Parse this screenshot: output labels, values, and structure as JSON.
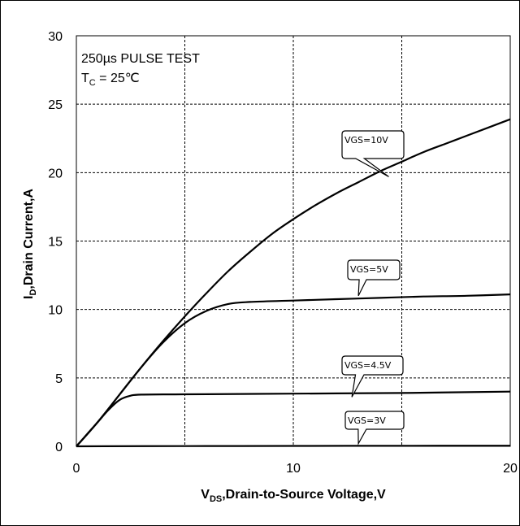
{
  "chart_data": {
    "type": "line",
    "title": "",
    "annotation": {
      "line1": "250µs PULSE TEST",
      "line2_main": "T",
      "line2_sub": "C",
      "line2_rest": " = 25℃"
    },
    "xlabel": {
      "main": "V",
      "sub": "DS",
      "rest": ",Drain-to-Source Voltage,V"
    },
    "ylabel": {
      "main": "I",
      "sub": "D",
      "rest": ",Drain Current,A"
    },
    "xlim": [
      0,
      20
    ],
    "ylim": [
      0,
      30
    ],
    "xticks": [
      0,
      10,
      20
    ],
    "yticks": [
      0,
      5,
      10,
      15,
      20,
      25,
      30
    ],
    "x_grid": [
      0,
      5,
      10,
      15,
      20
    ],
    "grid": true,
    "series": [
      {
        "name": "VGS=10V",
        "points": [
          [
            0,
            0
          ],
          [
            1,
            1.8
          ],
          [
            2,
            3.8
          ],
          [
            3,
            5.8
          ],
          [
            4,
            7.7
          ],
          [
            5,
            9.5
          ],
          [
            6,
            11.2
          ],
          [
            7,
            12.8
          ],
          [
            8,
            14.2
          ],
          [
            9,
            15.5
          ],
          [
            10,
            16.6
          ],
          [
            11,
            17.6
          ],
          [
            12,
            18.5
          ],
          [
            13,
            19.3
          ],
          [
            14,
            20.1
          ],
          [
            15,
            20.8
          ],
          [
            16,
            21.5
          ],
          [
            17,
            22.1
          ],
          [
            18,
            22.7
          ],
          [
            19,
            23.3
          ],
          [
            20,
            23.9
          ]
        ],
        "label_at": [
          14.4,
          19.7
        ]
      },
      {
        "name": "VGS=5V",
        "points": [
          [
            0,
            0
          ],
          [
            1,
            1.8
          ],
          [
            2,
            3.8
          ],
          [
            3,
            5.8
          ],
          [
            4,
            7.6
          ],
          [
            5,
            9.0
          ],
          [
            6,
            9.9
          ],
          [
            7,
            10.4
          ],
          [
            8,
            10.55
          ],
          [
            10,
            10.65
          ],
          [
            12,
            10.75
          ],
          [
            14,
            10.85
          ],
          [
            16,
            10.95
          ],
          [
            18,
            11.0
          ],
          [
            20,
            11.1
          ]
        ],
        "label_at": [
          13,
          11.0
        ]
      },
      {
        "name": "VGS=4.5V",
        "points": [
          [
            0,
            0
          ],
          [
            0.5,
            0.9
          ],
          [
            1,
            1.8
          ],
          [
            1.5,
            2.7
          ],
          [
            2,
            3.4
          ],
          [
            2.5,
            3.7
          ],
          [
            3,
            3.78
          ],
          [
            5,
            3.8
          ],
          [
            10,
            3.85
          ],
          [
            15,
            3.9
          ],
          [
            20,
            4.0
          ]
        ],
        "label_at": [
          12.7,
          3.6
        ]
      },
      {
        "name": "VGS=3V",
        "points": [
          [
            0,
            0
          ],
          [
            5,
            0.02
          ],
          [
            10,
            0.03
          ],
          [
            15,
            0.04
          ],
          [
            20,
            0.05
          ]
        ],
        "label_at": [
          13,
          0.2
        ]
      }
    ]
  }
}
